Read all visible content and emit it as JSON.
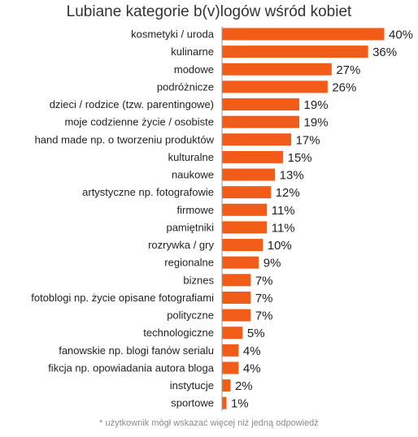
{
  "chart_data": {
    "type": "bar",
    "orientation": "horizontal",
    "title": "Lubiane kategorie b(v)logów wśród kobiet",
    "footnote": "* użytkownik mógł wskazać więcej niż jedną odpowiedź",
    "categories": [
      "kosmetyki / uroda",
      "kulinarne",
      "modowe",
      "podróżnicze",
      "dzieci / rodzice (tzw. parentingowe)",
      "moje codzienne życie / osobiste",
      "hand made np. o tworzeniu produktów",
      "kulturalne",
      "naukowe",
      "artystyczne np. fotografowie",
      "firmowe",
      "pamiętniki",
      "rozrywka / gry",
      "regionalne",
      "biznes",
      "fotoblogi np. życie opisane fotografiami",
      "polityczne",
      "technologiczne",
      "fanowskie np. blogi fanów serialu",
      "fikcja np. opowiadania autora bloga",
      "instytucje",
      "sportowe"
    ],
    "values": [
      40,
      36,
      27,
      26,
      19,
      19,
      17,
      15,
      13,
      12,
      11,
      11,
      10,
      9,
      7,
      7,
      7,
      5,
      4,
      4,
      2,
      1
    ],
    "value_labels": [
      "40%",
      "36%",
      "27%",
      "26%",
      "19%",
      "19%",
      "17%",
      "15%",
      "13%",
      "12%",
      "11%",
      "11%",
      "10%",
      "9%",
      "7%",
      "7%",
      "7%",
      "5%",
      "4%",
      "4%",
      "2%",
      "1%"
    ],
    "bar_color": "#f25c19",
    "xlim": [
      0,
      40
    ],
    "grid": false,
    "legend": "none"
  }
}
